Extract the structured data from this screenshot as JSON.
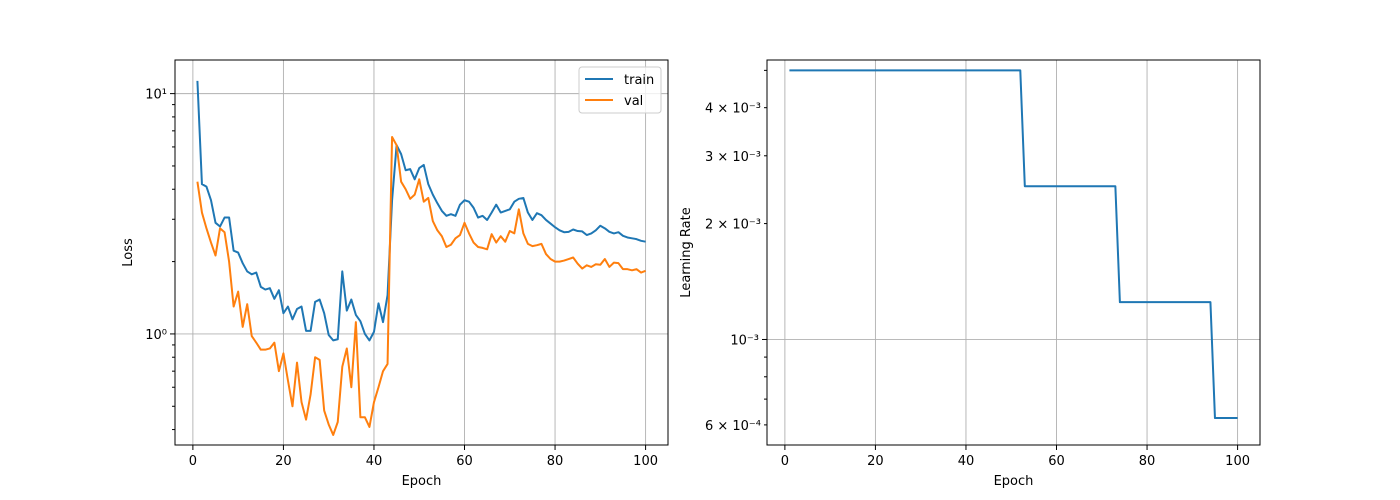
{
  "colors": {
    "train": "#1f77b4",
    "val": "#ff7f0e",
    "lr": "#1f77b4",
    "grid": "#b0b0b0",
    "background": "#ffffff"
  },
  "chart_data": [
    {
      "type": "line",
      "xlabel": "Epoch",
      "ylabel": "Loss",
      "xlim": [
        -3.95,
        104.95
      ],
      "ylim": [
        0.345,
        13.8
      ],
      "yscale": "log",
      "grid": true,
      "legend_position": "top-right",
      "x_ticks": [
        0,
        20,
        40,
        60,
        80,
        100
      ],
      "x_tick_labels": [
        "0",
        "20",
        "40",
        "60",
        "80",
        "100"
      ],
      "y_major_ticks": [
        1,
        10
      ],
      "y_major_tick_labels": [
        "10⁰",
        "10¹"
      ],
      "y_minor_ticks": [
        0.4,
        0.5,
        0.6,
        0.7,
        0.8,
        0.9,
        2,
        3,
        4,
        5,
        6,
        7,
        8,
        9
      ],
      "series": [
        {
          "name": "train",
          "x": [
            1,
            2,
            3,
            4,
            5,
            6,
            7,
            8,
            9,
            10,
            11,
            12,
            13,
            14,
            15,
            16,
            17,
            18,
            19,
            20,
            21,
            22,
            23,
            24,
            25,
            26,
            27,
            28,
            29,
            30,
            31,
            32,
            33,
            34,
            35,
            36,
            37,
            38,
            39,
            40,
            41,
            42,
            43,
            44,
            45,
            46,
            47,
            48,
            49,
            50,
            51,
            52,
            53,
            54,
            55,
            56,
            57,
            58,
            59,
            60,
            61,
            62,
            63,
            64,
            65,
            66,
            67,
            68,
            69,
            70,
            71,
            72,
            73,
            74,
            75,
            76,
            77,
            78,
            79,
            80,
            81,
            82,
            83,
            84,
            85,
            86,
            87,
            88,
            89,
            90,
            91,
            92,
            93,
            94,
            95,
            96,
            97,
            98,
            99,
            100
          ],
          "values": [
            11.3,
            4.2,
            4.1,
            3.6,
            2.9,
            2.8,
            3.05,
            3.05,
            2.22,
            2.18,
            1.97,
            1.82,
            1.77,
            1.8,
            1.57,
            1.53,
            1.55,
            1.4,
            1.52,
            1.22,
            1.3,
            1.15,
            1.27,
            1.3,
            1.03,
            1.03,
            1.36,
            1.39,
            1.22,
            0.99,
            0.94,
            0.95,
            1.82,
            1.25,
            1.39,
            1.2,
            1.13,
            1.0,
            0.94,
            1.02,
            1.34,
            1.12,
            1.45,
            3.6,
            6.1,
            5.6,
            4.8,
            4.85,
            4.4,
            4.9,
            5.05,
            4.2,
            3.8,
            3.5,
            3.25,
            3.1,
            3.15,
            3.1,
            3.45,
            3.6,
            3.55,
            3.35,
            3.05,
            3.1,
            2.98,
            3.2,
            3.45,
            3.2,
            3.25,
            3.3,
            3.55,
            3.65,
            3.68,
            3.2,
            2.98,
            3.18,
            3.12,
            2.98,
            2.88,
            2.78,
            2.7,
            2.65,
            2.66,
            2.72,
            2.68,
            2.67,
            2.58,
            2.62,
            2.7,
            2.82,
            2.75,
            2.66,
            2.62,
            2.65,
            2.56,
            2.52,
            2.5,
            2.48,
            2.44,
            2.42
          ]
        },
        {
          "name": "val",
          "x": [
            1,
            2,
            3,
            4,
            5,
            6,
            7,
            8,
            9,
            10,
            11,
            12,
            13,
            14,
            15,
            16,
            17,
            18,
            19,
            20,
            21,
            22,
            23,
            24,
            25,
            26,
            27,
            28,
            29,
            30,
            31,
            32,
            33,
            34,
            35,
            36,
            37,
            38,
            39,
            40,
            41,
            42,
            43,
            44,
            45,
            46,
            47,
            48,
            49,
            50,
            51,
            52,
            53,
            54,
            55,
            56,
            57,
            58,
            59,
            60,
            61,
            62,
            63,
            64,
            65,
            66,
            67,
            68,
            69,
            70,
            71,
            72,
            73,
            74,
            75,
            76,
            77,
            78,
            79,
            80,
            81,
            82,
            83,
            84,
            85,
            86,
            87,
            88,
            89,
            90,
            91,
            92,
            93,
            94,
            95,
            96,
            97,
            98,
            99,
            100
          ],
          "values": [
            4.3,
            3.2,
            2.75,
            2.4,
            2.12,
            2.75,
            2.65,
            2.0,
            1.3,
            1.5,
            1.07,
            1.33,
            0.98,
            0.92,
            0.86,
            0.86,
            0.87,
            0.92,
            0.7,
            0.83,
            0.64,
            0.5,
            0.76,
            0.52,
            0.44,
            0.56,
            0.8,
            0.78,
            0.48,
            0.42,
            0.38,
            0.43,
            0.73,
            0.87,
            0.6,
            1.12,
            0.45,
            0.45,
            0.41,
            0.52,
            0.6,
            0.7,
            0.75,
            6.6,
            6.1,
            4.3,
            4.0,
            3.65,
            3.8,
            4.4,
            3.55,
            3.68,
            2.95,
            2.7,
            2.55,
            2.3,
            2.35,
            2.5,
            2.58,
            2.9,
            2.62,
            2.4,
            2.3,
            2.28,
            2.25,
            2.6,
            2.4,
            2.55,
            2.42,
            2.68,
            2.62,
            3.3,
            2.62,
            2.37,
            2.32,
            2.34,
            2.37,
            2.15,
            2.05,
            2.0,
            2.0,
            2.02,
            2.05,
            2.08,
            1.96,
            1.87,
            1.93,
            1.9,
            1.95,
            1.94,
            2.05,
            1.9,
            1.98,
            1.97,
            1.86,
            1.86,
            1.84,
            1.86,
            1.8,
            1.83
          ]
        }
      ]
    },
    {
      "type": "line",
      "xlabel": "Epoch",
      "ylabel": "Learning Rate",
      "xlim": [
        -3.95,
        104.95
      ],
      "ylim": [
        0.000532,
        0.00532
      ],
      "yscale": "log",
      "grid": true,
      "x_ticks": [
        0,
        20,
        40,
        60,
        80,
        100
      ],
      "x_tick_labels": [
        "0",
        "20",
        "40",
        "60",
        "80",
        "100"
      ],
      "y_major_ticks": [
        0.001
      ],
      "y_major_tick_labels": [
        "10⁻³"
      ],
      "y_minor_ticks": [
        0.0006,
        0.0007,
        0.0008,
        0.0009,
        0.002,
        0.003,
        0.004,
        0.005
      ],
      "y_minor_tick_labels": [
        "6 × 10⁻⁴",
        "",
        "",
        "",
        "2 × 10⁻³",
        "3 × 10⁻³",
        "4 × 10⁻³",
        ""
      ],
      "series": [
        {
          "x": [
            1,
            52,
            53,
            73,
            74,
            94,
            95,
            100
          ],
          "values": [
            0.005,
            0.005,
            0.0025,
            0.0025,
            0.00125,
            0.00125,
            0.000625,
            0.000625
          ]
        }
      ]
    }
  ]
}
